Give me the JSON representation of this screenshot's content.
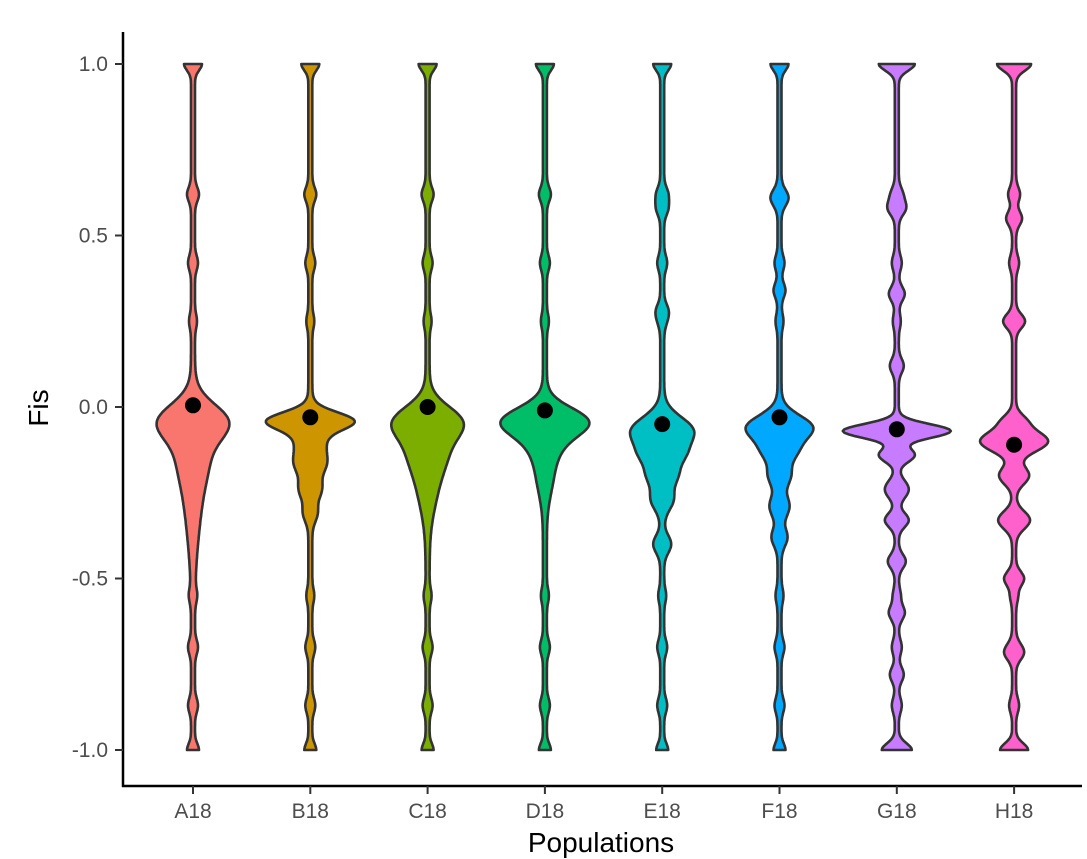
{
  "chart_data": {
    "type": "violin",
    "title": "",
    "xlabel": "Populations",
    "ylabel": "Fis",
    "ylim": [
      -1.0,
      1.0
    ],
    "y_ticks": [
      -1.0,
      -0.5,
      0.0,
      0.5,
      1.0
    ],
    "y_tick_labels": [
      "-1.0",
      "-0.5",
      "0.0",
      "0.5",
      "1.0"
    ],
    "grid": false,
    "legend": "none",
    "categories": [
      "A18",
      "B18",
      "C18",
      "D18",
      "E18",
      "F18",
      "G18",
      "H18"
    ],
    "colors": [
      "#F8766D",
      "#CD9600",
      "#7CAE00",
      "#00BE67",
      "#00BFC4",
      "#00A9FF",
      "#C77CFF",
      "#FF61CC"
    ],
    "means": [
      0.005,
      -0.03,
      0.0,
      -0.01,
      -0.05,
      -0.03,
      -0.065,
      -0.11
    ],
    "mean_marker_color": "#000000",
    "outline_color": "#333333"
  }
}
